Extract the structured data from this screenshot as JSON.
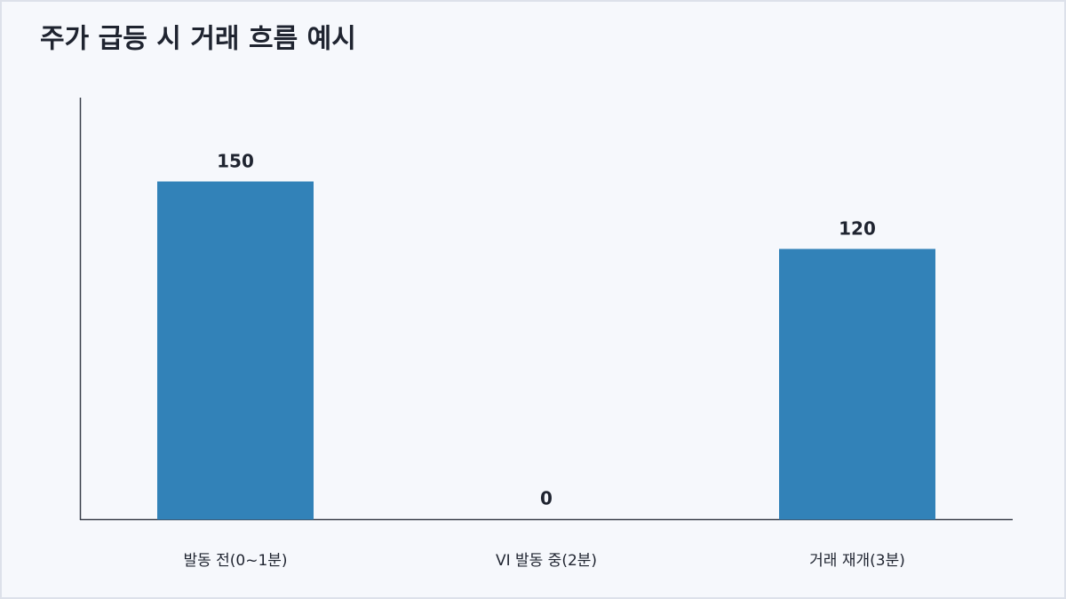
{
  "chart_data": {
    "type": "bar",
    "title": "주가 급등 시 거래 흐름 예시",
    "categories": [
      "발동 전(0~1분)",
      "VI 발동 중(2분)",
      "거래 재개(3분)"
    ],
    "values": [
      150,
      0,
      120
    ],
    "color": "#3282b8",
    "ylim": [
      0,
      187.5
    ],
    "grid": false
  }
}
